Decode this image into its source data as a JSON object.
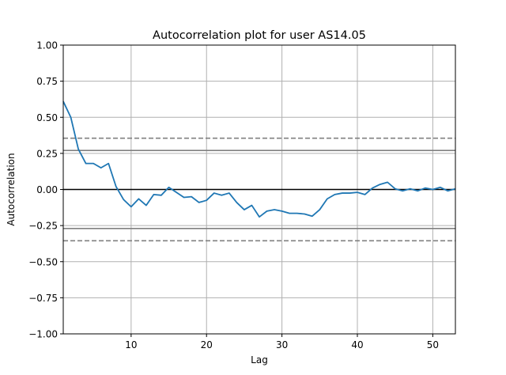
{
  "chart_data": {
    "type": "line",
    "title": "Autocorrelation plot for user AS14.05",
    "xlabel": "Lag",
    "ylabel": "Autocorrelation",
    "xlim": [
      1,
      53
    ],
    "ylim": [
      -1.0,
      1.0
    ],
    "xticks": [
      10,
      20,
      30,
      40,
      50
    ],
    "yticks": [
      1.0,
      0.75,
      0.5,
      0.25,
      0.0,
      -0.25,
      -0.5,
      -0.75,
      -1.0
    ],
    "ytick_labels": [
      "1.00",
      "0.75",
      "0.50",
      "0.25",
      "0.00",
      "−0.25",
      "−0.50",
      "−0.75",
      "−1.00"
    ],
    "grid": true,
    "legend": "none",
    "reference_lines": {
      "zero": 0.0,
      "ci95": 0.27,
      "ci99": 0.355
    },
    "series": [
      {
        "color": "#1f77b4",
        "x": [
          1,
          2,
          3,
          4,
          5,
          6,
          7,
          8,
          9,
          10,
          11,
          12,
          13,
          14,
          15,
          16,
          17,
          18,
          19,
          20,
          21,
          22,
          23,
          24,
          25,
          26,
          27,
          28,
          29,
          30,
          31,
          32,
          33,
          34,
          35,
          36,
          37,
          38,
          39,
          40,
          41,
          42,
          43,
          44,
          45,
          46,
          47,
          48,
          49,
          50,
          51,
          52,
          53
        ],
        "values": [
          0.61,
          0.5,
          0.28,
          0.18,
          0.18,
          0.15,
          0.18,
          0.02,
          -0.07,
          -0.12,
          -0.065,
          -0.11,
          -0.035,
          -0.04,
          0.015,
          -0.02,
          -0.055,
          -0.05,
          -0.09,
          -0.075,
          -0.025,
          -0.04,
          -0.025,
          -0.09,
          -0.14,
          -0.11,
          -0.19,
          -0.15,
          -0.14,
          -0.15,
          -0.165,
          -0.165,
          -0.17,
          -0.185,
          -0.14,
          -0.065,
          -0.035,
          -0.025,
          -0.025,
          -0.02,
          -0.035,
          0.01,
          0.035,
          0.05,
          0.005,
          -0.01,
          0.005,
          -0.01,
          0.01,
          0.0,
          0.015,
          -0.01,
          0.005
        ]
      }
    ]
  }
}
